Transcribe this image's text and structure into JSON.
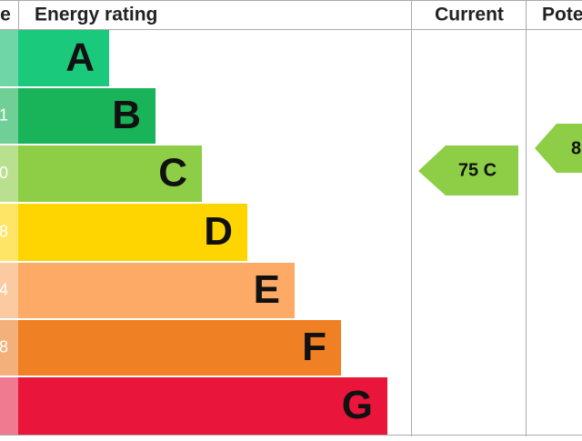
{
  "header": {
    "score": "e",
    "rating": "Energy rating",
    "current": "Current",
    "potential": "Pote"
  },
  "rows": [
    {
      "letter": "A"
    },
    {
      "letter": "B",
      "score": "1"
    },
    {
      "letter": "C",
      "score": "0"
    },
    {
      "letter": "D",
      "score": "8"
    },
    {
      "letter": "E",
      "score": "4"
    },
    {
      "letter": "F",
      "score": "8"
    },
    {
      "letter": "G"
    }
  ],
  "current": "75 C",
  "potential": "8"
}
